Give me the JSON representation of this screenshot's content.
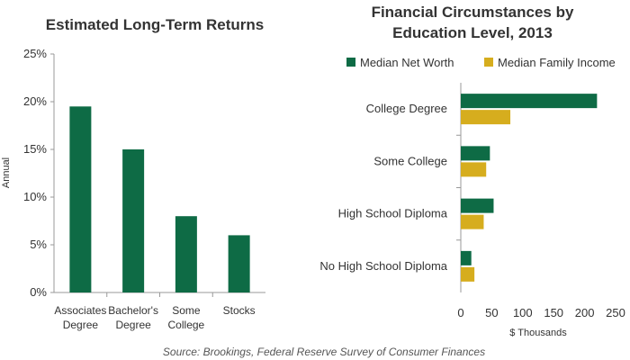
{
  "colors": {
    "net_worth": "#0e6b45",
    "family_income": "#d6ad1e",
    "axis": "#999999"
  },
  "source": "Source: Brookings, Federal Reserve Survey of Consumer Finances",
  "chart_data": [
    {
      "type": "bar",
      "title": "Estimated Long-Term Returns",
      "ylabel": "Annual",
      "xlabel": "",
      "ylim": [
        0,
        25
      ],
      "yticks": [
        "0%",
        "5%",
        "10%",
        "15%",
        "20%",
        "25%"
      ],
      "categories": [
        [
          "Associates",
          "Degree"
        ],
        [
          "Bachelor's",
          "Degree"
        ],
        [
          "Some",
          "College"
        ],
        [
          "Stocks"
        ]
      ],
      "values": [
        19.5,
        15,
        8,
        6
      ],
      "grid": false
    },
    {
      "type": "bar",
      "orientation": "horizontal",
      "title": [
        "Financial Circumstances by",
        "Education Level, 2013"
      ],
      "xlabel": "$ Thousands",
      "ylabel": "",
      "xlim": [
        0,
        250
      ],
      "xticks": [
        "0",
        "50",
        "100",
        "150",
        "200",
        "250"
      ],
      "categories": [
        "College Degree",
        "Some College",
        "High School Diploma",
        "No High School Diploma"
      ],
      "series": [
        {
          "name": "Median Net Worth",
          "values": [
            220,
            47,
            53,
            17
          ]
        },
        {
          "name": "Median Family Income",
          "values": [
            80,
            41,
            37,
            22
          ]
        }
      ],
      "legend": "top",
      "grid": false
    }
  ]
}
